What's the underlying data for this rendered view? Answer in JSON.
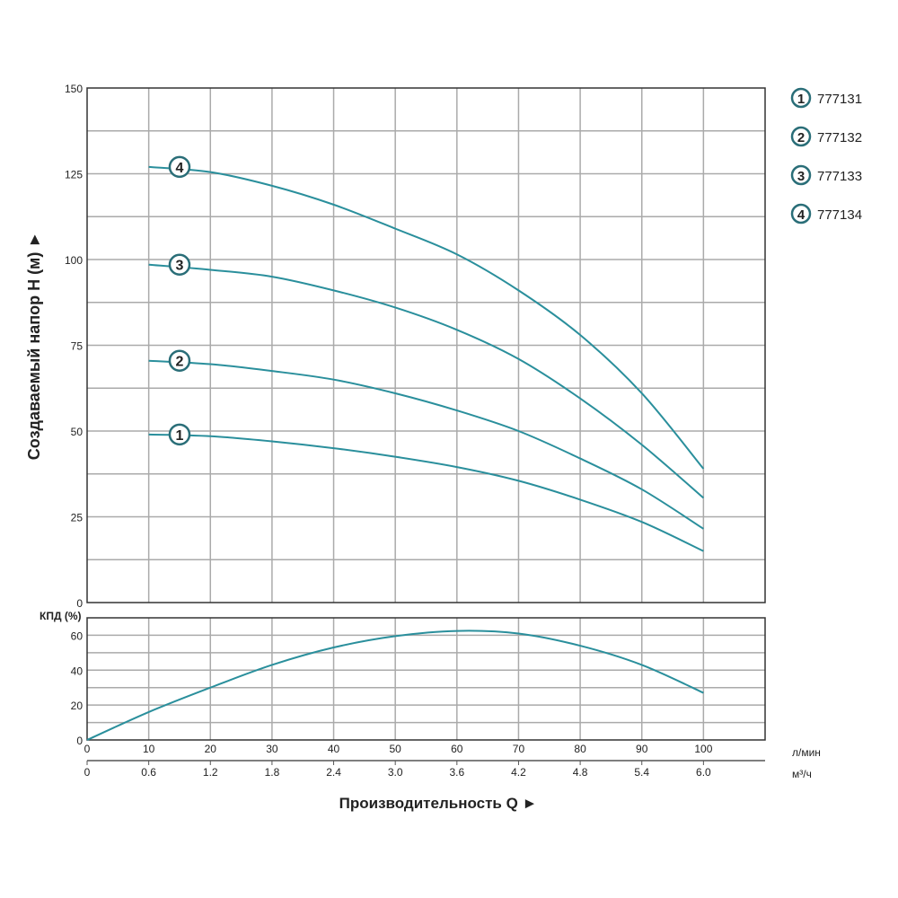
{
  "chart_data": [
    {
      "type": "line",
      "ylabel": "Создаваемый напор H (м) ►",
      "ylim": [
        0,
        150
      ],
      "yticks": [
        "0",
        "25",
        "50",
        "75",
        "100",
        "125",
        "150"
      ],
      "xlim": [
        0,
        110
      ],
      "grid": true,
      "color": "#2a8f9c",
      "series": [
        {
          "name": "1",
          "x": [
            10,
            20,
            30,
            40,
            50,
            60,
            70,
            80,
            90,
            100
          ],
          "values": [
            49,
            48.5,
            47,
            45,
            42.5,
            39.5,
            35.5,
            30,
            23.5,
            15
          ]
        },
        {
          "name": "2",
          "x": [
            10,
            20,
            30,
            40,
            50,
            60,
            70,
            80,
            90,
            100
          ],
          "values": [
            70.5,
            69.5,
            67.5,
            65,
            61,
            56,
            50,
            42,
            33,
            21.5
          ]
        },
        {
          "name": "3",
          "x": [
            10,
            20,
            30,
            40,
            50,
            60,
            70,
            80,
            90,
            100
          ],
          "values": [
            98.5,
            97,
            95,
            91,
            86,
            79.5,
            71,
            59.5,
            46,
            30.5
          ]
        },
        {
          "name": "4",
          "x": [
            10,
            20,
            30,
            40,
            50,
            60,
            70,
            80,
            90,
            100
          ],
          "values": [
            127,
            125.5,
            121.5,
            116,
            109,
            101.5,
            91,
            78,
            61,
            39
          ]
        }
      ],
      "legend": {
        "placement": "right",
        "entries": [
          {
            "num": "1",
            "label": "777131"
          },
          {
            "num": "2",
            "label": "777132"
          },
          {
            "num": "3",
            "label": "777133"
          },
          {
            "num": "4",
            "label": "777134"
          }
        ]
      }
    },
    {
      "type": "line",
      "ylabel": "КПД (%)",
      "ylim": [
        0,
        70
      ],
      "yticks": [
        "0",
        "20",
        "40",
        "60"
      ],
      "xlim": [
        0,
        110
      ],
      "grid": true,
      "series": [
        {
          "x": [
            0,
            10,
            20,
            30,
            40,
            50,
            60,
            70,
            80,
            90,
            100
          ],
          "values": [
            0,
            16,
            30,
            43,
            53,
            59.5,
            62.5,
            61,
            54,
            43,
            27
          ]
        }
      ],
      "xticks_lmin": [
        "0",
        "10",
        "20",
        "30",
        "40",
        "50",
        "60",
        "70",
        "80",
        "90",
        "100"
      ],
      "xunit_lmin": "л/мин",
      "xticks_m3h": [
        "0",
        "0.6",
        "1.2",
        "1.8",
        "2.4",
        "3.0",
        "3.6",
        "4.2",
        "4.8",
        "5.4",
        "6.0"
      ],
      "xunit_m3h": "м³/ч",
      "xlabel": "Производительность Q ►"
    }
  ]
}
